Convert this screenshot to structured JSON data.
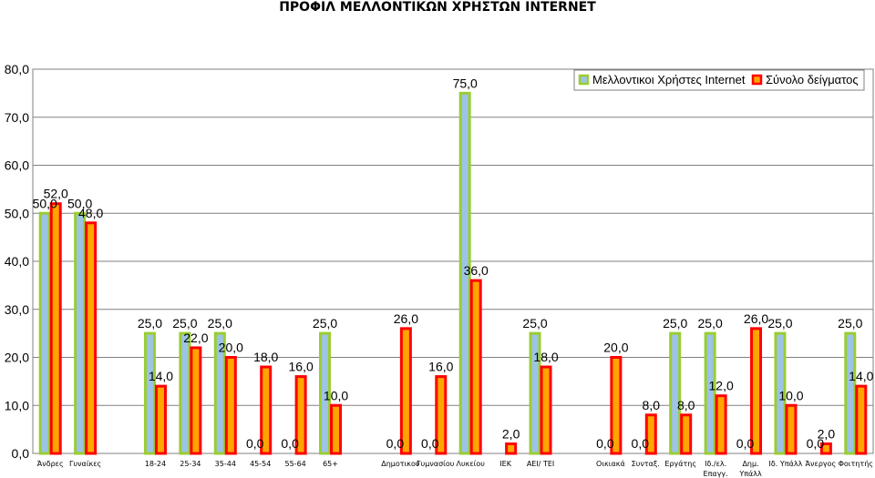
{
  "chart_data": {
    "type": "bar",
    "title": "ΠΡΟΦΙΛ ΜΕΛΛΟΝΤΙΚΩΝ ΧΡΗΣΤΩΝ INTERNET",
    "xlabel": "",
    "ylabel": "",
    "ylim": [
      0,
      80
    ],
    "yticks": [
      "0,0",
      "10,0",
      "20,0",
      "30,0",
      "40,0",
      "50,0",
      "60,0",
      "70,0",
      "80,0"
    ],
    "grid": true,
    "legend_position": "top-right",
    "categories": [
      [
        "Άνδρες"
      ],
      [
        "Γυναίκες"
      ],
      [
        ""
      ],
      [
        "18-24"
      ],
      [
        "25-34"
      ],
      [
        "35-44"
      ],
      [
        "45-54"
      ],
      [
        "55-64"
      ],
      [
        "65+"
      ],
      [
        ""
      ],
      [
        "Δημοτικού"
      ],
      [
        "Γυμνασίου"
      ],
      [
        "Λυκείου"
      ],
      [
        "ΙΕΚ"
      ],
      [
        "ΑΕΙ/ ΤΕΙ"
      ],
      [
        ""
      ],
      [
        "Οικιακά"
      ],
      [
        "Συνταξ."
      ],
      [
        "Εργάτης"
      ],
      [
        "Ιδ./ελ.",
        "Επαγγ."
      ],
      [
        "Δημ.",
        "Υπάλλ"
      ],
      [
        "Ιδ. Υπάλλ"
      ],
      [
        "Άνεργος"
      ],
      [
        "Φοιτητής"
      ]
    ],
    "series": [
      {
        "name": "Μελλοντικοι Χρήστες Internet",
        "color": "#9ACD32",
        "fill": "#9DC3E6",
        "values": [
          50,
          50,
          null,
          25,
          25,
          25,
          0,
          0,
          25,
          null,
          0,
          0,
          75,
          0,
          25,
          null,
          0,
          0,
          25,
          25,
          0,
          25,
          0,
          25
        ],
        "labels": [
          "50,0",
          "50,0",
          "",
          "25,0",
          "25,0",
          "25,0",
          "0,0",
          "0,0",
          "25,0",
          "",
          "0,0",
          "0,0",
          "75,0",
          "",
          "25,0",
          "",
          "0,0",
          "0,0",
          "25,0",
          "25,0",
          "0,0",
          "25,0",
          "0,0",
          "25,0"
        ]
      },
      {
        "name": "Σύνολο δείγματος",
        "color": "#FF0000",
        "fill": "#FFA500",
        "values": [
          52,
          48,
          null,
          14,
          22,
          20,
          18,
          16,
          10,
          null,
          26,
          16,
          36,
          2,
          18,
          null,
          20,
          8,
          8,
          12,
          26,
          10,
          2,
          14
        ],
        "labels": [
          "52,0",
          "48,0",
          "",
          "14,0",
          "22,0",
          "20,0",
          "18,0",
          "16,0",
          "10,0",
          "",
          "26,0",
          "16,0",
          "36,0",
          "2,0",
          "18,0",
          "",
          "20,0",
          "8,0",
          "8,0",
          "12,0",
          "26,0",
          "10,0",
          "2,0",
          "14,0"
        ]
      }
    ]
  }
}
